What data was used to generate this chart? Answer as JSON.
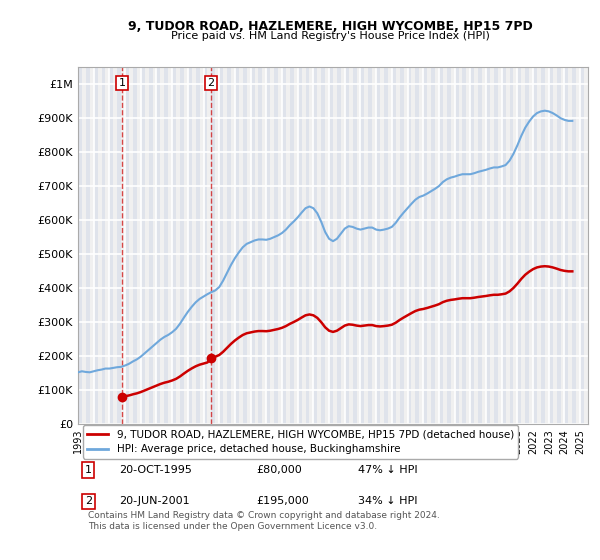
{
  "title": "9, TUDOR ROAD, HAZLEMERE, HIGH WYCOMBE, HP15 7PD",
  "subtitle": "Price paid vs. HM Land Registry's House Price Index (HPI)",
  "ylabel_ticks": [
    "£0",
    "£100K",
    "£200K",
    "£300K",
    "£400K",
    "£500K",
    "£600K",
    "£700K",
    "£800K",
    "£900K",
    "£1M"
  ],
  "ytick_values": [
    0,
    100000,
    200000,
    300000,
    400000,
    500000,
    600000,
    700000,
    800000,
    900000,
    1000000
  ],
  "ylim": [
    0,
    1050000
  ],
  "xlim_start": 1993,
  "xlim_end": 2025.5,
  "xtick_years": [
    1993,
    1994,
    1995,
    1996,
    1997,
    1998,
    1999,
    2000,
    2001,
    2002,
    2003,
    2004,
    2005,
    2006,
    2007,
    2008,
    2009,
    2010,
    2011,
    2012,
    2013,
    2014,
    2015,
    2016,
    2017,
    2018,
    2019,
    2020,
    2021,
    2022,
    2023,
    2024,
    2025
  ],
  "hpi_color": "#6fa8dc",
  "price_color": "#cc0000",
  "marker_color": "#cc0000",
  "purchase_points": [
    {
      "year": 1995.8,
      "price": 80000,
      "label": "1"
    },
    {
      "year": 2001.47,
      "price": 195000,
      "label": "2"
    }
  ],
  "legend_entries": [
    {
      "label": "9, TUDOR ROAD, HAZLEMERE, HIGH WYCOMBE, HP15 7PD (detached house)",
      "color": "#cc0000"
    },
    {
      "label": "HPI: Average price, detached house, Buckinghamshire",
      "color": "#6fa8dc"
    }
  ],
  "table_rows": [
    {
      "marker": "1",
      "date": "20-OCT-1995",
      "price": "£80,000",
      "hpi": "47% ↓ HPI"
    },
    {
      "marker": "2",
      "date": "20-JUN-2001",
      "price": "£195,000",
      "hpi": "34% ↓ HPI"
    }
  ],
  "footer": "Contains HM Land Registry data © Crown copyright and database right 2024.\nThis data is licensed under the Open Government Licence v3.0.",
  "bg_color": "#ffffff",
  "plot_bg_color": "#f0f0f0",
  "hatch_color": "#d0d8e8",
  "grid_color": "#ffffff",
  "hpi_data_x": [
    1993.0,
    1993.25,
    1993.5,
    1993.75,
    1994.0,
    1994.25,
    1994.5,
    1994.75,
    1995.0,
    1995.25,
    1995.5,
    1995.75,
    1996.0,
    1996.25,
    1996.5,
    1996.75,
    1997.0,
    1997.25,
    1997.5,
    1997.75,
    1998.0,
    1998.25,
    1998.5,
    1998.75,
    1999.0,
    1999.25,
    1999.5,
    1999.75,
    2000.0,
    2000.25,
    2000.5,
    2000.75,
    2001.0,
    2001.25,
    2001.5,
    2001.75,
    2002.0,
    2002.25,
    2002.5,
    2002.75,
    2003.0,
    2003.25,
    2003.5,
    2003.75,
    2004.0,
    2004.25,
    2004.5,
    2004.75,
    2005.0,
    2005.25,
    2005.5,
    2005.75,
    2006.0,
    2006.25,
    2006.5,
    2006.75,
    2007.0,
    2007.25,
    2007.5,
    2007.75,
    2008.0,
    2008.25,
    2008.5,
    2008.75,
    2009.0,
    2009.25,
    2009.5,
    2009.75,
    2010.0,
    2010.25,
    2010.5,
    2010.75,
    2011.0,
    2011.25,
    2011.5,
    2011.75,
    2012.0,
    2012.25,
    2012.5,
    2012.75,
    2013.0,
    2013.25,
    2013.5,
    2013.75,
    2014.0,
    2014.25,
    2014.5,
    2014.75,
    2015.0,
    2015.25,
    2015.5,
    2015.75,
    2016.0,
    2016.25,
    2016.5,
    2016.75,
    2017.0,
    2017.25,
    2017.5,
    2017.75,
    2018.0,
    2018.25,
    2018.5,
    2018.75,
    2019.0,
    2019.25,
    2019.5,
    2019.75,
    2020.0,
    2020.25,
    2020.5,
    2020.75,
    2021.0,
    2021.25,
    2021.5,
    2021.75,
    2022.0,
    2022.25,
    2022.5,
    2022.75,
    2023.0,
    2023.25,
    2023.5,
    2023.75,
    2024.0,
    2024.25,
    2024.5
  ],
  "hpi_data_y": [
    152000,
    155000,
    153000,
    152000,
    155000,
    158000,
    160000,
    163000,
    163000,
    165000,
    167000,
    168000,
    172000,
    177000,
    184000,
    190000,
    198000,
    208000,
    218000,
    228000,
    238000,
    248000,
    256000,
    262000,
    270000,
    280000,
    295000,
    313000,
    330000,
    345000,
    358000,
    368000,
    375000,
    382000,
    388000,
    393000,
    403000,
    422000,
    445000,
    468000,
    488000,
    505000,
    520000,
    530000,
    535000,
    540000,
    543000,
    543000,
    542000,
    545000,
    550000,
    555000,
    562000,
    572000,
    585000,
    596000,
    608000,
    622000,
    635000,
    640000,
    635000,
    620000,
    595000,
    565000,
    545000,
    538000,
    545000,
    560000,
    575000,
    582000,
    580000,
    575000,
    572000,
    575000,
    578000,
    578000,
    572000,
    570000,
    572000,
    575000,
    580000,
    592000,
    608000,
    622000,
    635000,
    648000,
    660000,
    668000,
    672000,
    678000,
    685000,
    692000,
    700000,
    712000,
    720000,
    725000,
    728000,
    732000,
    735000,
    735000,
    735000,
    738000,
    742000,
    745000,
    748000,
    752000,
    755000,
    755000,
    758000,
    762000,
    775000,
    795000,
    820000,
    848000,
    872000,
    890000,
    905000,
    915000,
    920000,
    922000,
    920000,
    915000,
    908000,
    900000,
    895000,
    892000,
    892000
  ],
  "price_data_x": [
    1993.0,
    1993.5,
    1994.0,
    1994.5,
    1995.0,
    1995.5,
    1996.0,
    1996.5,
    1997.0,
    1997.5,
    1998.0,
    1998.5,
    1999.0,
    1999.5,
    2000.0,
    2000.5,
    2001.0,
    2001.5,
    2002.0,
    2002.5,
    2003.0,
    2003.5,
    2004.0,
    2004.5,
    2005.0,
    2005.5,
    2006.0,
    2006.5,
    2007.0,
    2007.5,
    2008.0,
    2008.5,
    2009.0,
    2009.5,
    2010.0,
    2010.5,
    2011.0,
    2011.5,
    2012.0,
    2012.5,
    2013.0,
    2013.5,
    2014.0,
    2014.5,
    2015.0,
    2015.5,
    2016.0,
    2016.5,
    2017.0,
    2017.5,
    2018.0,
    2018.5,
    2019.0,
    2019.5,
    2020.0,
    2020.5,
    2021.0,
    2021.5,
    2022.0,
    2022.5,
    2023.0,
    2023.5,
    2024.0,
    2024.5
  ],
  "price_data_y": [
    null,
    null,
    null,
    null,
    null,
    80000,
    null,
    null,
    null,
    null,
    null,
    null,
    null,
    null,
    null,
    null,
    null,
    195000,
    null,
    null,
    null,
    null,
    null,
    null,
    null,
    null,
    null,
    null,
    null,
    null,
    null,
    null,
    null,
    null,
    null,
    null,
    null,
    null,
    null,
    null,
    null,
    null,
    null,
    null,
    null,
    null,
    null,
    null,
    null,
    null,
    null,
    null,
    null,
    null,
    null,
    null,
    null,
    null,
    null,
    null,
    null,
    null,
    null,
    null
  ]
}
